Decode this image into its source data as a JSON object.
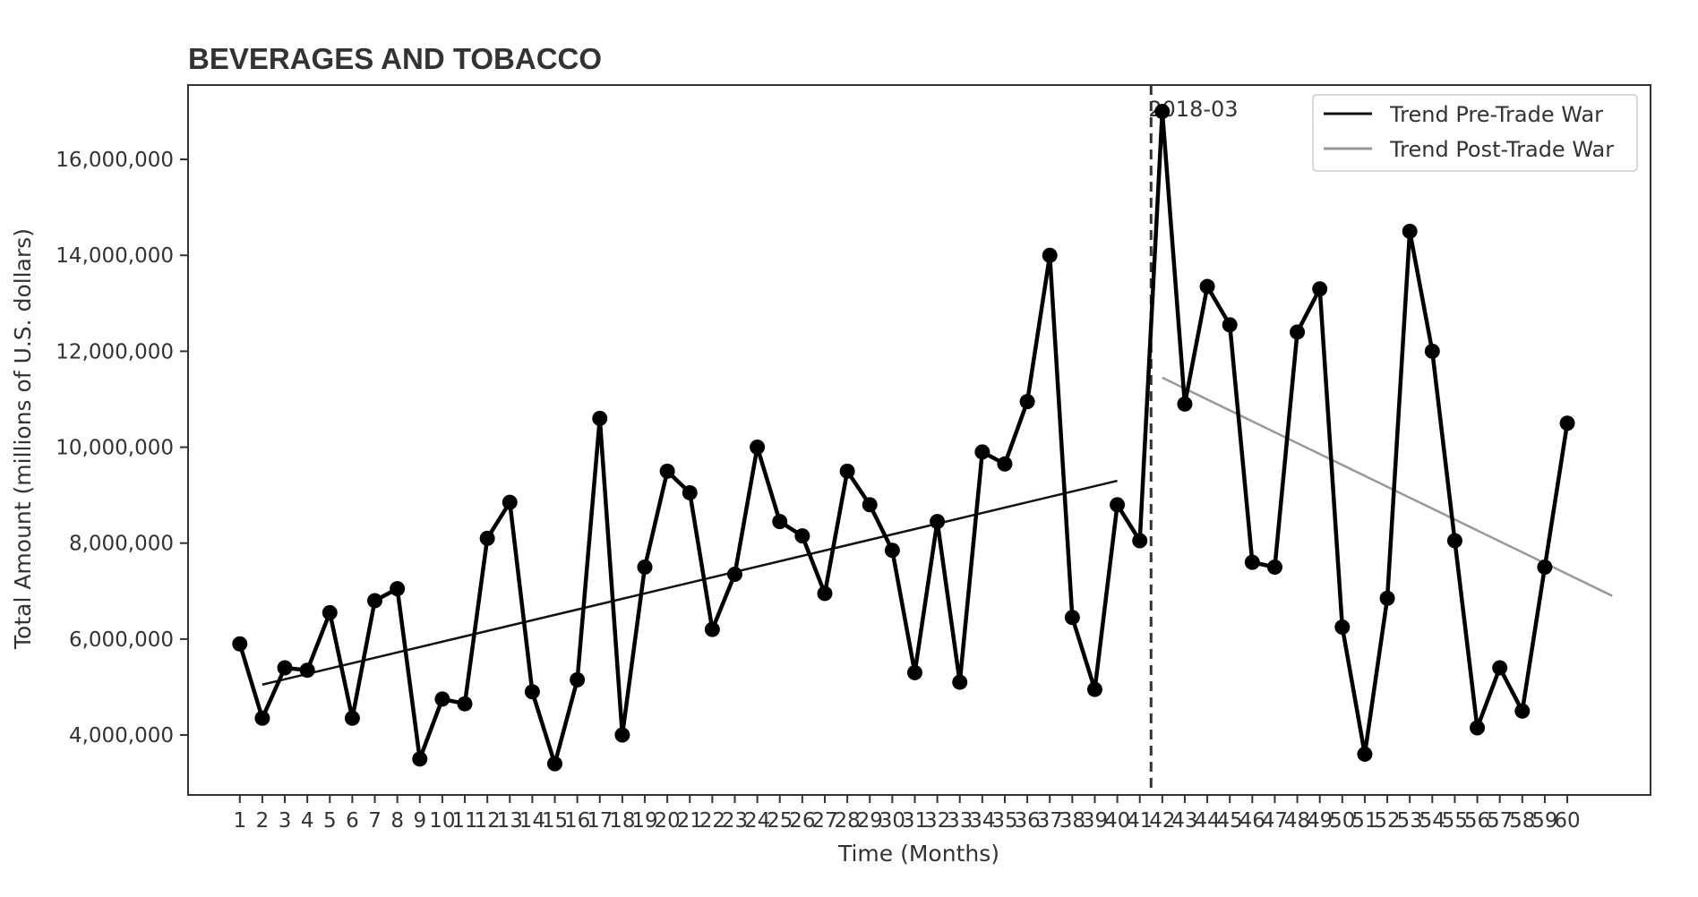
{
  "chart_data": {
    "type": "line",
    "title": "BEVERAGES AND TOBACCO",
    "xlabel": "Time (Months)",
    "ylabel": "Total Amount (millions of U.S. dollars)",
    "x": [
      1,
      2,
      3,
      4,
      5,
      6,
      7,
      8,
      9,
      10,
      11,
      12,
      13,
      14,
      15,
      16,
      17,
      18,
      19,
      20,
      21,
      22,
      23,
      24,
      25,
      26,
      27,
      28,
      29,
      30,
      31,
      32,
      33,
      34,
      35,
      36,
      37,
      38,
      39,
      40,
      41,
      42,
      43,
      44,
      45,
      46,
      47,
      48,
      49,
      50,
      51,
      52,
      53,
      54,
      55,
      56,
      57,
      58,
      59,
      60
    ],
    "xticks": [
      "1",
      "2",
      "3",
      "4",
      "5",
      "6",
      "7",
      "8",
      "9",
      "10",
      "11",
      "12",
      "13",
      "14",
      "15",
      "16",
      "17",
      "18",
      "19",
      "20",
      "21",
      "22",
      "23",
      "24",
      "25",
      "26",
      "27",
      "28",
      "29",
      "30",
      "31",
      "32",
      "33",
      "34",
      "35",
      "36",
      "37",
      "38",
      "39",
      "40",
      "41",
      "42",
      "43",
      "44",
      "45",
      "46",
      "47",
      "48",
      "49",
      "50",
      "51",
      "52",
      "53",
      "54",
      "55",
      "56",
      "57",
      "58",
      "59",
      "60"
    ],
    "yticks": [
      4000000,
      6000000,
      8000000,
      10000000,
      12000000,
      14000000,
      16000000
    ],
    "ytick_labels": [
      "4,000,000",
      "6,000,000",
      "8,000,000",
      "10,000,000",
      "12,000,000",
      "14,000,000",
      "16,000,000"
    ],
    "xlim": [
      -1.3,
      63.7
    ],
    "ylim": [
      2750000,
      17550000
    ],
    "series": [
      {
        "values": [
          5900000,
          4350000,
          5400000,
          5350000,
          6550000,
          4350000,
          6800000,
          7050000,
          3500000,
          4750000,
          4650000,
          8100000,
          8850000,
          4900000,
          3400000,
          5150000,
          10600000,
          4000000,
          7500000,
          9500000,
          9050000,
          6200000,
          7350000,
          10000000,
          8450000,
          8150000,
          6950000,
          9500000,
          8800000,
          7850000,
          5300000,
          8450000,
          5100000,
          9900000,
          9650000,
          10950000,
          14000000,
          6450000,
          4950000,
          8800000,
          8050000,
          17000000,
          10900000,
          13350000,
          12550000,
          7600000,
          7500000,
          12400000,
          13300000,
          6250000,
          3600000,
          6850000,
          14500000,
          12000000,
          8050000,
          4150000,
          5400000,
          4500000,
          7500000,
          10500000
        ],
        "color": "#000000",
        "marker": "circle"
      }
    ],
    "trend_pre": {
      "name": "Trend Pre-Trade War",
      "x": [
        2,
        40
      ],
      "y": [
        5050000,
        9300000
      ],
      "color": "#111111"
    },
    "trend_post": {
      "name": "Trend Post-Trade War",
      "x": [
        42,
        62
      ],
      "y": [
        11450000,
        6900000
      ],
      "color": "#999999"
    },
    "vline": {
      "x": 41.5,
      "label": "2018-03",
      "style": "dashed"
    },
    "legend_placement": "top-right",
    "grid": false
  }
}
